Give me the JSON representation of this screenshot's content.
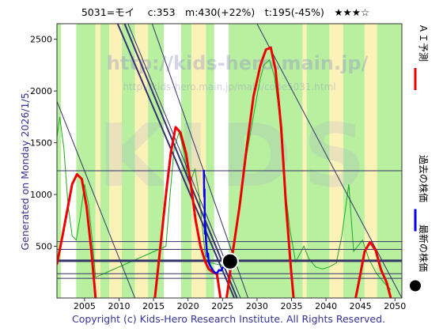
{
  "chart_data": {
    "type": "line",
    "title": "5031=モイ　 c:353　m:430(+22%)　t:195(-45%)　★★★☆",
    "side_text": "Generated on Monday 2026/1/5.",
    "footer": "Copyright (c) Kids-Hero Research Institute. All Rights Reserved.",
    "watermark": {
      "url": "http://kids-hero.main.jp/",
      "url_sub": "http://kids-hero.main.jp/main/code5031.html",
      "big": "KIDS"
    },
    "xlim": [
      2001,
      2051
    ],
    "ylim": [
      0,
      2650
    ],
    "x_ticks": [
      "2005",
      "2010",
      "2015",
      "2020",
      "2025",
      "2030",
      "2035",
      "2040",
      "2045",
      "2050"
    ],
    "y_ticks": [
      "500",
      "1000",
      "1500",
      "2000",
      "2500"
    ],
    "legend": [
      {
        "name": "ＡＩ予測",
        "color": "#ee0000",
        "marker": "line"
      },
      {
        "name": "過去の株価",
        "color": "#0000ee",
        "marker": "line"
      },
      {
        "name": "最新の株価",
        "color": "#000000",
        "marker": "dot"
      }
    ],
    "background_bands": [
      [
        2001.0,
        2001.6,
        "g"
      ],
      [
        2001.6,
        2003.8,
        "w"
      ],
      [
        2003.8,
        2006.6,
        "g"
      ],
      [
        2006.6,
        2007.3,
        "y"
      ],
      [
        2007.3,
        2008.6,
        "g"
      ],
      [
        2008.6,
        2010.4,
        "y"
      ],
      [
        2010.4,
        2012.3,
        "g"
      ],
      [
        2012.3,
        2014.2,
        "y"
      ],
      [
        2014.2,
        2016.5,
        "g"
      ],
      [
        2016.5,
        2019.0,
        "w"
      ],
      [
        2019.0,
        2020.5,
        "g"
      ],
      [
        2020.5,
        2022.6,
        "y"
      ],
      [
        2022.6,
        2023.8,
        "g"
      ],
      [
        2023.8,
        2025.9,
        "w"
      ],
      [
        2025.9,
        2036.6,
        "g"
      ],
      [
        2036.6,
        2037.2,
        "y"
      ],
      [
        2037.2,
        2040.5,
        "g"
      ],
      [
        2040.5,
        2042.5,
        "y"
      ],
      [
        2042.5,
        2045.6,
        "g"
      ],
      [
        2045.6,
        2047.4,
        "y"
      ],
      [
        2047.4,
        2051.0,
        "g"
      ]
    ],
    "h_lines": [
      {
        "y": 1230,
        "w": 1
      },
      {
        "y": 545,
        "w": 1
      },
      {
        "y": 470,
        "w": 1
      },
      {
        "y": 360,
        "w": 3
      },
      {
        "y": 235,
        "w": 1
      },
      {
        "y": 190,
        "w": 1
      }
    ],
    "diag_lines": [
      {
        "x1": 2009.8,
        "y1": 2650,
        "x2": 2026.7,
        "y2": 0,
        "w": 2
      },
      {
        "x1": 2010.8,
        "y1": 2650,
        "x2": 2027.1,
        "y2": 0,
        "w": 2
      },
      {
        "x1": 2011.3,
        "y1": 2650,
        "x2": 2027.6,
        "y2": 0,
        "w": 1
      },
      {
        "x1": 2014.8,
        "y1": 2650,
        "x2": 2028.7,
        "y2": 0,
        "w": 1
      },
      {
        "x1": 2030.0,
        "y1": 2650,
        "x2": 2051.0,
        "y2": 0,
        "w": 1
      },
      {
        "x1": 2001.0,
        "y1": 1900,
        "x2": 2012.3,
        "y2": 0,
        "w": 1
      }
    ],
    "series": [
      {
        "name": "ＡＩ予測",
        "color": "#ee0000",
        "width": 3,
        "segments": [
          [
            [
              2001.0,
              330
            ],
            [
              2001.8,
              600
            ],
            [
              2002.5,
              850
            ],
            [
              2003.2,
              1100
            ],
            [
              2003.9,
              1195
            ],
            [
              2004.6,
              1150
            ],
            [
              2005.3,
              880
            ],
            [
              2006.0,
              450
            ],
            [
              2006.6,
              0
            ]
          ],
          [
            [
              2015.2,
              0
            ],
            [
              2016.0,
              500
            ],
            [
              2016.8,
              1000
            ],
            [
              2017.5,
              1400
            ],
            [
              2018.2,
              1650
            ],
            [
              2018.9,
              1600
            ],
            [
              2019.7,
              1400
            ],
            [
              2020.4,
              1100
            ],
            [
              2021.1,
              750
            ],
            [
              2021.8,
              500
            ],
            [
              2022.5,
              350
            ],
            [
              2023.0,
              280
            ],
            [
              2023.6,
              250
            ],
            [
              2024.2,
              230
            ],
            [
              2024.7,
              0
            ]
          ],
          [
            [
              2025.6,
              0
            ],
            [
              2026.5,
              450
            ],
            [
              2027.5,
              900
            ],
            [
              2028.5,
              1450
            ],
            [
              2029.5,
              1950
            ],
            [
              2030.5,
              2250
            ],
            [
              2031.3,
              2400
            ],
            [
              2032.0,
              2420
            ],
            [
              2032.7,
              2200
            ],
            [
              2033.5,
              1650
            ],
            [
              2034.2,
              900
            ],
            [
              2034.9,
              300
            ],
            [
              2035.3,
              0
            ]
          ],
          [
            [
              2044.3,
              0
            ],
            [
              2044.9,
              200
            ],
            [
              2045.6,
              450
            ],
            [
              2046.4,
              540
            ],
            [
              2047.2,
              460
            ],
            [
              2048.0,
              270
            ],
            [
              2048.8,
              150
            ],
            [
              2049.4,
              0
            ]
          ]
        ]
      },
      {
        "name": "過去の株価",
        "color": "#0000ee",
        "width": 2.5,
        "segments": [
          [
            [
              2022.3,
              1230
            ],
            [
              2022.35,
              980
            ],
            [
              2022.4,
              1050
            ],
            [
              2022.45,
              620
            ],
            [
              2022.5,
              700
            ],
            [
              2022.6,
              560
            ],
            [
              2022.7,
              480
            ],
            [
              2022.8,
              400
            ],
            [
              2022.9,
              430
            ],
            [
              2023.0,
              350
            ],
            [
              2023.1,
              330
            ],
            [
              2023.3,
              300
            ],
            [
              2023.5,
              280
            ],
            [
              2023.7,
              260
            ],
            [
              2023.9,
              245
            ],
            [
              2024.1,
              240
            ],
            [
              2024.3,
              250
            ],
            [
              2024.5,
              270
            ],
            [
              2024.8,
              265
            ],
            [
              2025.1,
              300
            ],
            [
              2025.4,
              330
            ],
            [
              2025.7,
              353
            ],
            [
              2025.95,
              353
            ]
          ]
        ]
      }
    ],
    "green_line": [
      [
        2001.0,
        1550
      ],
      [
        2001.4,
        1750
      ],
      [
        2002.0,
        1450
      ],
      [
        2002.6,
        900
      ],
      [
        2003.2,
        600
      ],
      [
        2003.8,
        560
      ],
      [
        2004.4,
        800
      ],
      [
        2005.0,
        1100
      ],
      [
        2005.6,
        900
      ],
      [
        2006.2,
        500
      ],
      [
        2006.6,
        200
      ],
      [
        2016.8,
        500
      ],
      [
        2017.4,
        1000
      ],
      [
        2018.0,
        1450
      ],
      [
        2018.7,
        1600
      ],
      [
        2019.4,
        1420
      ],
      [
        2019.9,
        1180
      ],
      [
        2020.5,
        1150
      ],
      [
        2021.0,
        1250
      ],
      [
        2021.6,
        1000
      ],
      [
        2022.2,
        600
      ],
      [
        2022.6,
        350
      ],
      [
        2026.0,
        300
      ],
      [
        2027.0,
        700
      ],
      [
        2028.0,
        1200
      ],
      [
        2028.8,
        1500
      ],
      [
        2029.6,
        1800
      ],
      [
        2030.4,
        2100
      ],
      [
        2031.0,
        2250
      ],
      [
        2031.8,
        2300
      ],
      [
        2032.5,
        2150
      ],
      [
        2033.2,
        1800
      ],
      [
        2034.0,
        1100
      ],
      [
        2034.8,
        650
      ],
      [
        2035.6,
        350
      ],
      [
        2036.8,
        500
      ],
      [
        2037.5,
        380
      ],
      [
        2038.5,
        300
      ],
      [
        2039.5,
        280
      ],
      [
        2040.5,
        300
      ],
      [
        2041.5,
        340
      ],
      [
        2042.3,
        600
      ],
      [
        2043.3,
        1100
      ],
      [
        2044.0,
        450
      ],
      [
        2044.6,
        500
      ],
      [
        2045.3,
        560
      ],
      [
        2046.2,
        380
      ],
      [
        2047.3,
        240
      ],
      [
        2048.4,
        150
      ],
      [
        2049.4,
        80
      ]
    ],
    "last_point": {
      "x": 2026.1,
      "y": 353
    }
  }
}
